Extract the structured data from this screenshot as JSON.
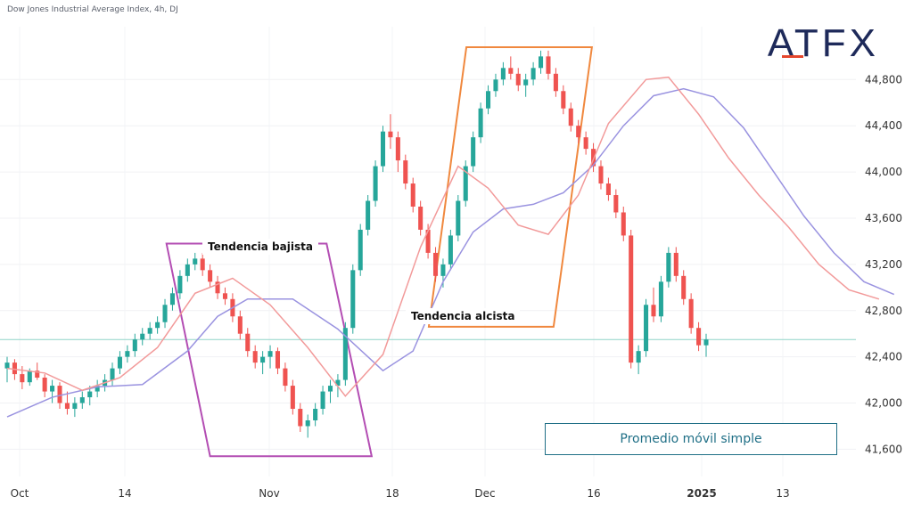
{
  "title": "Dow Jones Industrial Average Index, 4h, DJ",
  "logo": "ATFX",
  "colors": {
    "up": "#26a69a",
    "down": "#ef5350",
    "sma_fast": "#f29a9a",
    "sma_slow": "#9a93e0",
    "bear_box": "#b34db3",
    "bull_box": "#f0883e",
    "legend": "#1f6f86",
    "price_line": "#8fd3c7"
  },
  "annotations": {
    "bear": "Tendencia bajista",
    "bull": "Tendencia alcista",
    "legend": "Promedio móvil simple"
  },
  "chart_data": {
    "type": "candlestick",
    "title": "Dow Jones Industrial Average Index, 4h, DJ",
    "x_ticks": [
      {
        "label": "Oct",
        "bold": false
      },
      {
        "label": "14",
        "bold": false
      },
      {
        "label": "Nov",
        "bold": false
      },
      {
        "label": "18",
        "bold": false
      },
      {
        "label": "Dec",
        "bold": false
      },
      {
        "label": "16",
        "bold": false
      },
      {
        "label": "2025",
        "bold": true
      },
      {
        "label": "13",
        "bold": false
      }
    ],
    "y_ticks": [
      41600,
      42000,
      42400,
      42800,
      43200,
      43600,
      44000,
      44400,
      44800
    ],
    "ylim": [
      41480,
      45180
    ],
    "current_price": 42550,
    "candles": [
      [
        42300,
        42400,
        42180,
        42350
      ],
      [
        42350,
        42380,
        42200,
        42250
      ],
      [
        42250,
        42320,
        42120,
        42180
      ],
      [
        42180,
        42300,
        42150,
        42280
      ],
      [
        42280,
        42350,
        42200,
        42220
      ],
      [
        42220,
        42250,
        42050,
        42100
      ],
      [
        42100,
        42200,
        42000,
        42150
      ],
      [
        42150,
        42180,
        41950,
        42000
      ],
      [
        42000,
        42100,
        41900,
        41950
      ],
      [
        41950,
        42050,
        41880,
        42000
      ],
      [
        42000,
        42100,
        41950,
        42050
      ],
      [
        42050,
        42150,
        41980,
        42100
      ],
      [
        42100,
        42200,
        42050,
        42150
      ],
      [
        42150,
        42250,
        42100,
        42200
      ],
      [
        42200,
        42350,
        42150,
        42300
      ],
      [
        42300,
        42450,
        42250,
        42400
      ],
      [
        42400,
        42500,
        42350,
        42450
      ],
      [
        42450,
        42600,
        42400,
        42550
      ],
      [
        42550,
        42650,
        42500,
        42600
      ],
      [
        42600,
        42700,
        42550,
        42650
      ],
      [
        42650,
        42750,
        42600,
        42700
      ],
      [
        42700,
        42900,
        42650,
        42850
      ],
      [
        42850,
        43000,
        42800,
        42950
      ],
      [
        42950,
        43150,
        42900,
        43100
      ],
      [
        43100,
        43250,
        43050,
        43200
      ],
      [
        43200,
        43300,
        43150,
        43250
      ],
      [
        43250,
        43300,
        43100,
        43150
      ],
      [
        43150,
        43200,
        43000,
        43050
      ],
      [
        43050,
        43100,
        42900,
        42950
      ],
      [
        42950,
        43000,
        42850,
        42900
      ],
      [
        42900,
        42950,
        42700,
        42750
      ],
      [
        42750,
        42800,
        42550,
        42600
      ],
      [
        42600,
        42650,
        42400,
        42450
      ],
      [
        42450,
        42500,
        42300,
        42350
      ],
      [
        42350,
        42450,
        42250,
        42400
      ],
      [
        42400,
        42500,
        42300,
        42450
      ],
      [
        42450,
        42480,
        42250,
        42300
      ],
      [
        42300,
        42350,
        42100,
        42150
      ],
      [
        42150,
        42200,
        41900,
        41950
      ],
      [
        41950,
        42000,
        41750,
        41800
      ],
      [
        41800,
        41900,
        41700,
        41850
      ],
      [
        41850,
        42000,
        41800,
        41950
      ],
      [
        41950,
        42150,
        41900,
        42100
      ],
      [
        42100,
        42200,
        42000,
        42150
      ],
      [
        42150,
        42250,
        42050,
        42200
      ],
      [
        42200,
        42700,
        42150,
        42650
      ],
      [
        42650,
        43200,
        42600,
        43150
      ],
      [
        43150,
        43550,
        43100,
        43500
      ],
      [
        43500,
        43800,
        43450,
        43750
      ],
      [
        43750,
        44100,
        43700,
        44050
      ],
      [
        44050,
        44400,
        44000,
        44350
      ],
      [
        44350,
        44500,
        44200,
        44300
      ],
      [
        44300,
        44350,
        44000,
        44100
      ],
      [
        44100,
        44150,
        43850,
        43900
      ],
      [
        43900,
        43950,
        43650,
        43700
      ],
      [
        43700,
        43750,
        43450,
        43500
      ],
      [
        43500,
        43550,
        43250,
        43300
      ],
      [
        43300,
        43350,
        43050,
        43100
      ],
      [
        43100,
        43250,
        43000,
        43200
      ],
      [
        43200,
        43500,
        43150,
        43450
      ],
      [
        43450,
        43800,
        43400,
        43750
      ],
      [
        43750,
        44100,
        43700,
        44050
      ],
      [
        44050,
        44350,
        44000,
        44300
      ],
      [
        44300,
        44600,
        44250,
        44550
      ],
      [
        44550,
        44750,
        44500,
        44700
      ],
      [
        44700,
        44850,
        44650,
        44800
      ],
      [
        44800,
        44950,
        44750,
        44900
      ],
      [
        44900,
        45000,
        44800,
        44850
      ],
      [
        44850,
        44900,
        44700,
        44750
      ],
      [
        44750,
        44850,
        44650,
        44800
      ],
      [
        44800,
        44950,
        44750,
        44900
      ],
      [
        44900,
        45050,
        44850,
        45000
      ],
      [
        45000,
        45050,
        44800,
        44850
      ],
      [
        44850,
        44900,
        44650,
        44700
      ],
      [
        44700,
        44750,
        44500,
        44550
      ],
      [
        44550,
        44600,
        44350,
        44400
      ],
      [
        44400,
        44450,
        44250,
        44300
      ],
      [
        44300,
        44350,
        44150,
        44200
      ],
      [
        44200,
        44250,
        44000,
        44050
      ],
      [
        44050,
        44100,
        43850,
        43900
      ],
      [
        43900,
        43950,
        43750,
        43800
      ],
      [
        43800,
        43850,
        43600,
        43650
      ],
      [
        43650,
        43700,
        43400,
        43450
      ],
      [
        43450,
        43500,
        42300,
        42350
      ],
      [
        42350,
        42500,
        42250,
        42450
      ],
      [
        42450,
        42900,
        42400,
        42850
      ],
      [
        42850,
        43000,
        42700,
        42750
      ],
      [
        42750,
        43100,
        42700,
        43050
      ],
      [
        43050,
        43350,
        43000,
        43300
      ],
      [
        43300,
        43350,
        43050,
        43100
      ],
      [
        43100,
        43150,
        42850,
        42900
      ],
      [
        42900,
        42950,
        42600,
        42650
      ],
      [
        42650,
        42700,
        42450,
        42500
      ],
      [
        42500,
        42600,
        42400,
        42550
      ]
    ],
    "sma_fast": [
      [
        0,
        42300
      ],
      [
        5,
        42260
      ],
      [
        10,
        42110
      ],
      [
        15,
        42220
      ],
      [
        20,
        42480
      ],
      [
        25,
        42950
      ],
      [
        30,
        43080
      ],
      [
        35,
        42850
      ],
      [
        40,
        42480
      ],
      [
        45,
        42060
      ],
      [
        50,
        42420
      ],
      [
        55,
        43350
      ],
      [
        60,
        44050
      ],
      [
        64,
        43860
      ],
      [
        68,
        43540
      ],
      [
        72,
        43460
      ],
      [
        76,
        43800
      ],
      [
        80,
        44420
      ],
      [
        85,
        44800
      ],
      [
        88,
        44820
      ],
      [
        92,
        44500
      ],
      [
        96,
        44120
      ],
      [
        100,
        43800
      ],
      [
        104,
        43520
      ],
      [
        108,
        43200
      ],
      [
        112,
        42980
      ],
      [
        116,
        42900
      ]
    ],
    "sma_slow": [
      [
        0,
        41880
      ],
      [
        6,
        42050
      ],
      [
        12,
        42140
      ],
      [
        18,
        42160
      ],
      [
        24,
        42450
      ],
      [
        28,
        42750
      ],
      [
        32,
        42900
      ],
      [
        38,
        42900
      ],
      [
        44,
        42640
      ],
      [
        50,
        42280
      ],
      [
        54,
        42450
      ],
      [
        58,
        43050
      ],
      [
        62,
        43480
      ],
      [
        66,
        43680
      ],
      [
        70,
        43720
      ],
      [
        74,
        43820
      ],
      [
        78,
        44060
      ],
      [
        82,
        44400
      ],
      [
        86,
        44660
      ],
      [
        90,
        44720
      ],
      [
        94,
        44650
      ],
      [
        98,
        44380
      ],
      [
        102,
        44000
      ],
      [
        106,
        43620
      ],
      [
        110,
        43300
      ],
      [
        114,
        43050
      ],
      [
        118,
        42940
      ]
    ]
  }
}
